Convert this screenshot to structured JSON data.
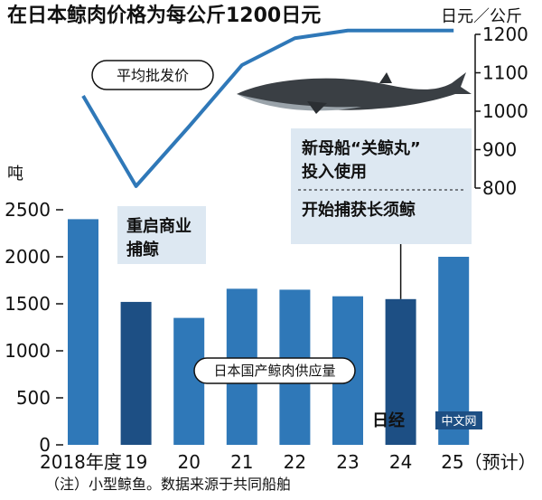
{
  "title": "在日本鲸肉价格为每公斤1200日元",
  "note": "（注）小型鲸鱼。数据来源于共同船舶",
  "watermark": {
    "logo": "日经",
    "tag": "中文网"
  },
  "colors": {
    "bar": "#2f78b8",
    "bar_dark": "#1d4f84",
    "line": "#2f78b8",
    "box": "#dde8f2"
  },
  "chart_data": {
    "type": "bar",
    "categories": [
      "2018年度",
      "19",
      "20",
      "21",
      "22",
      "23",
      "24",
      "25（预计）"
    ],
    "series": [
      {
        "name": "日本国产鲸肉供应量",
        "values": [
          2400,
          1520,
          1350,
          1660,
          1650,
          1580,
          1550,
          2000
        ],
        "highlight": [
          1,
          6
        ]
      }
    ],
    "ylabel": "吨",
    "ylim": [
      0,
      2500
    ],
    "yticks": [
      0,
      500,
      1000,
      1500,
      2000,
      2500
    ],
    "line": {
      "name": "平均批发价",
      "values": [
        1040,
        805,
        960,
        1120,
        1190,
        1210,
        1210,
        1210
      ],
      "ylabel": "日元／公斤",
      "ylim": [
        800,
        1200
      ],
      "yticks": [
        800,
        900,
        1000,
        1100,
        1200
      ]
    },
    "annotations": [
      {
        "id": "restart",
        "text": [
          "重启商业",
          "捕鲸"
        ],
        "category": "19"
      },
      {
        "id": "newship",
        "text": [
          "新母船“关鲸丸”",
          "投入使用"
        ],
        "category": "24"
      },
      {
        "id": "finwhale",
        "text": [
          "开始捕获长须鲸"
        ],
        "category": "24"
      }
    ],
    "legend": "bottom-center",
    "grid": false
  }
}
